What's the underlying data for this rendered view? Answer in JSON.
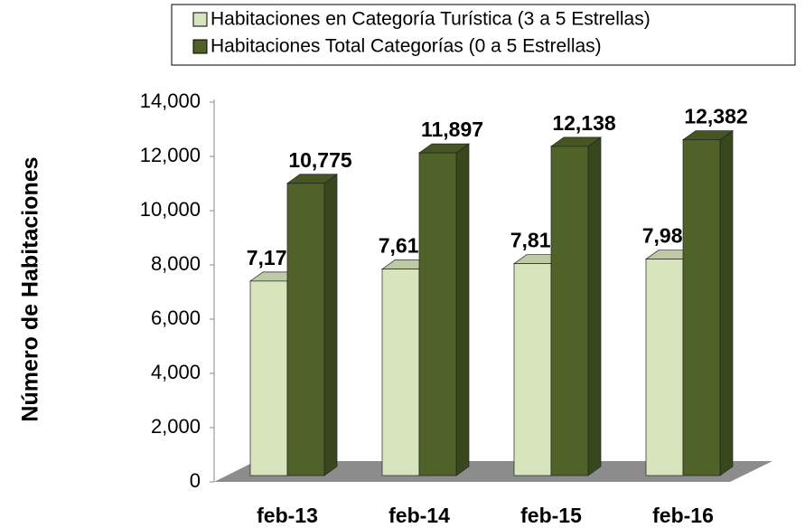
{
  "chart_data": {
    "type": "bar3d",
    "y_axis_label": "Número de Habitaciones",
    "categories": [
      "feb-13",
      "feb-14",
      "feb-15",
      "feb-16"
    ],
    "series": [
      {
        "name": "Habitaciones en Categoría Turística (3 a 5 Estrellas)",
        "color": "#d8e4bc",
        "values": [
          7171,
          7613,
          7814,
          7981
        ],
        "value_labels": [
          "7,171",
          "7,613",
          "7,814",
          "7,981"
        ]
      },
      {
        "name": "Habitaciones Total Categorías (0 a 5 Estrellas)",
        "color": "#4f6228",
        "values": [
          10775,
          11897,
          12138,
          12382
        ],
        "value_labels": [
          "10,775",
          "11,897",
          "12,138",
          "12,382"
        ]
      }
    ],
    "ylim": [
      0,
      14000
    ],
    "yticks": [
      0,
      {
        "value": 2000,
        "label": "2,000"
      },
      {
        "value": 4000,
        "label": "4,000"
      },
      {
        "value": 6000,
        "label": "6,000"
      },
      {
        "value": 8000,
        "label": "8,000"
      },
      {
        "value": 10000,
        "label": "10,000"
      },
      {
        "value": 12000,
        "label": "12,000"
      },
      {
        "value": 14000,
        "label": "14,000"
      }
    ],
    "legend": "top"
  }
}
